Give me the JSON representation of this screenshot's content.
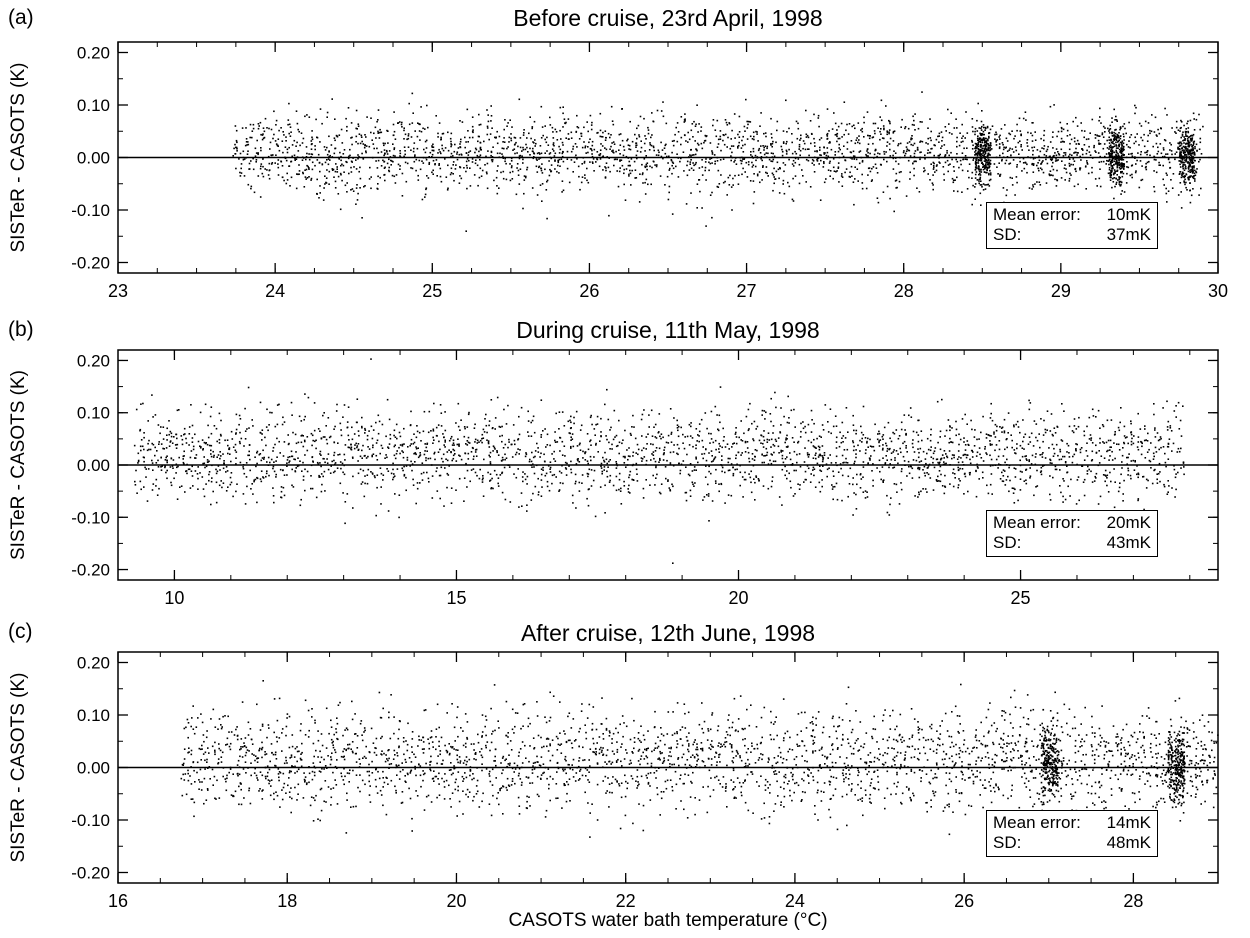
{
  "chart_data": [
    {
      "type": "scatter",
      "panel_label": "(a)",
      "title": "Before cruise, 23rd April, 1998",
      "ylabel": "SISTeR - CASOTS (K)",
      "xlabel": "",
      "xlim": [
        23,
        30
      ],
      "ylim": [
        -0.22,
        0.22
      ],
      "x_ticks": [
        "23",
        "24",
        "25",
        "26",
        "27",
        "28",
        "29",
        "30"
      ],
      "y_ticks": [
        "0.20",
        "0.10",
        "0.00",
        "-0.10",
        "-0.20"
      ],
      "zero_line": true,
      "grid": false,
      "data_range_x": [
        23.73,
        29.9
      ],
      "approx_mean_K": 0.01,
      "approx_sd_K": 0.037,
      "dense_x_clusters": [
        28.5,
        29.35,
        29.8
      ],
      "legend": {
        "mean_label": "Mean error:",
        "mean_value": "10mK",
        "sd_label": "SD:",
        "sd_value": "37mK"
      }
    },
    {
      "type": "scatter",
      "panel_label": "(b)",
      "title": "During cruise, 11th May, 1998",
      "ylabel": "SISTeR - CASOTS (K)",
      "xlabel": "",
      "xlim": [
        9,
        28.5
      ],
      "ylim": [
        -0.22,
        0.22
      ],
      "x_ticks": [
        "10",
        "15",
        "20",
        "25"
      ],
      "y_ticks": [
        "0.20",
        "0.10",
        "0.00",
        "-0.10",
        "-0.20"
      ],
      "zero_line": true,
      "grid": false,
      "data_range_x": [
        9.3,
        27.9
      ],
      "approx_mean_K": 0.02,
      "approx_sd_K": 0.043,
      "legend": {
        "mean_label": "Mean error:",
        "mean_value": "20mK",
        "sd_label": "SD:",
        "sd_value": "43mK"
      }
    },
    {
      "type": "scatter",
      "panel_label": "(c)",
      "title": "After cruise, 12th June, 1998",
      "ylabel": "SISTeR - CASOTS (K)",
      "xlabel": "CASOTS water bath temperature (°C)",
      "xlim": [
        16,
        29
      ],
      "ylim": [
        -0.22,
        0.22
      ],
      "x_ticks": [
        "16",
        "18",
        "20",
        "22",
        "24",
        "26",
        "28"
      ],
      "y_ticks": [
        "0.20",
        "0.10",
        "0.00",
        "-0.10",
        "-0.20"
      ],
      "zero_line": true,
      "grid": false,
      "data_range_x": [
        16.75,
        29
      ],
      "approx_mean_K": 0.014,
      "approx_sd_K": 0.048,
      "dense_x_clusters": [
        27,
        28.5
      ],
      "legend": {
        "mean_label": "Mean error:",
        "mean_value": "14mK",
        "sd_label": "SD:",
        "sd_value": "48mK"
      }
    }
  ]
}
